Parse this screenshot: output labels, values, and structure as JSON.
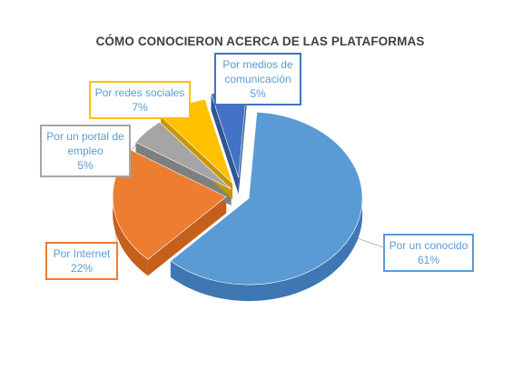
{
  "chart_data": {
    "type": "pie",
    "title": "CÓMO CONOCIERON ACERCA DE LAS PLATAFORMAS",
    "three_d": true,
    "exploded": true,
    "slices": [
      {
        "label": "Por un conocido",
        "value": 61,
        "value_label": "61%",
        "color": "#5b9bd5",
        "side_color": "#3e77b3",
        "text_color": "#5b9bd5"
      },
      {
        "label": "Por Internet",
        "value": 22,
        "value_label": "22%",
        "color": "#ed7d31",
        "side_color": "#c55f1c",
        "text_color": "#ed7d31"
      },
      {
        "label": "Por un portal de empleo",
        "value": 5,
        "value_label": "5%",
        "color": "#a5a5a5",
        "side_color": "#7f7f7f",
        "text_color": "#a5a5a5"
      },
      {
        "label": "Por redes sociales",
        "value": 7,
        "value_label": "7%",
        "color": "#ffc000",
        "side_color": "#c99600",
        "text_color": "#f0a800"
      },
      {
        "label": "Por medios de comunicación",
        "value": 5,
        "value_label": "5%",
        "color": "#4472c4",
        "side_color": "#2f5597",
        "text_color": "#4472c4"
      }
    ]
  }
}
